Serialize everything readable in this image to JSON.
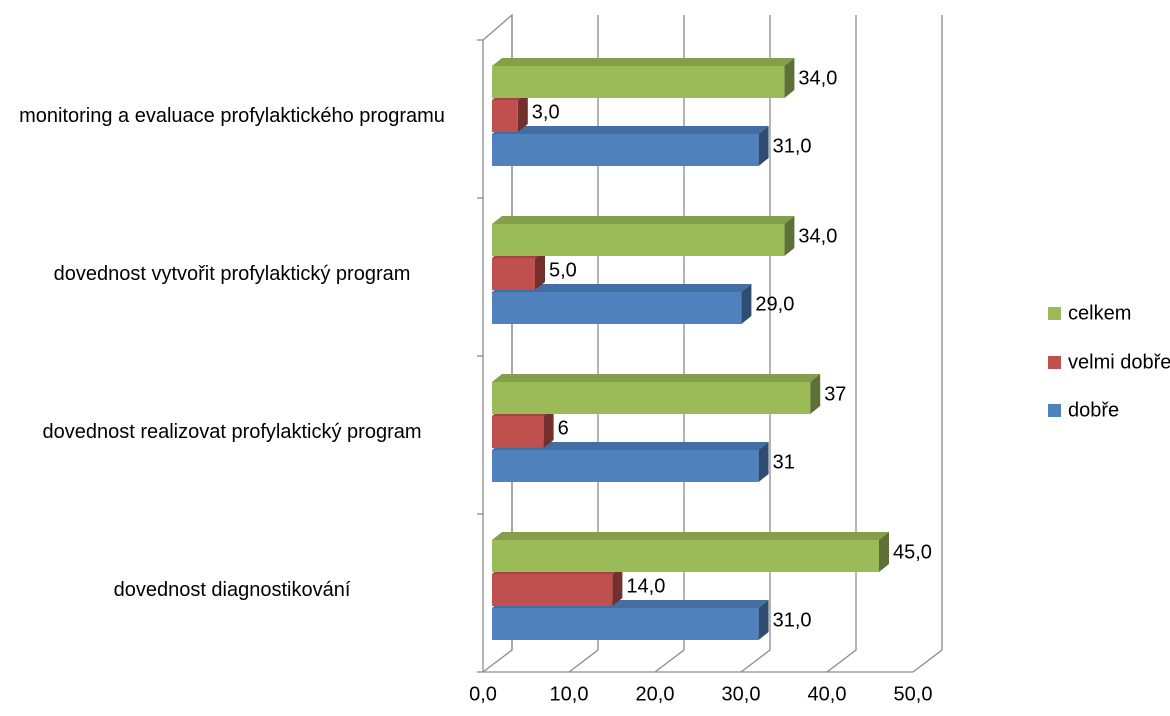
{
  "chart_data": {
    "type": "bar3d_horizontal",
    "categories": [
      "dovednost diagnostikování",
      "dovednost realizovat profylaktický program",
      "dovednost vytvořit profylaktický program",
      "monitoring a evaluace profylaktického programu"
    ],
    "series": [
      {
        "name": "dobře",
        "color": "#4f81bd",
        "values": [
          31,
          31,
          29,
          31
        ],
        "value_labels": [
          "31,0",
          "31",
          "29,0",
          "31,0"
        ]
      },
      {
        "name": "velmi dobře",
        "color": "#c0504d",
        "values": [
          14,
          6,
          5,
          3
        ],
        "value_labels": [
          "14,0",
          "6",
          "5,0",
          "3,0"
        ]
      },
      {
        "name": "celkem",
        "color": "#9bbb59",
        "values": [
          45,
          37,
          34,
          34
        ],
        "value_labels": [
          "45,0",
          "37",
          "34,0",
          "34,0"
        ]
      }
    ],
    "xlim": [
      0,
      50
    ],
    "xticks": [
      {
        "value": 0,
        "label": "0,0"
      },
      {
        "value": 10,
        "label": "10,0"
      },
      {
        "value": 20,
        "label": "20,0"
      },
      {
        "value": 30,
        "label": "30,0"
      },
      {
        "value": 40,
        "label": "40,0"
      },
      {
        "value": 50,
        "label": "50,0"
      }
    ],
    "grid": true,
    "legend": "right"
  }
}
